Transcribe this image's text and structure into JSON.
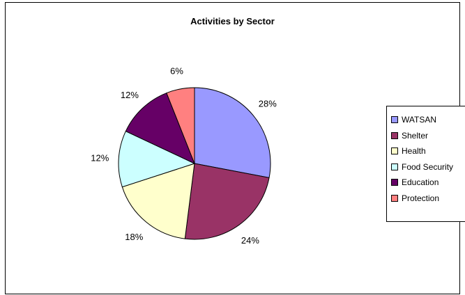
{
  "chart_data": {
    "type": "pie",
    "title": "Activities by Sector",
    "categories": [
      "WATSAN",
      "Shelter",
      "Health",
      "Food Security",
      "Education",
      "Protection"
    ],
    "values": [
      28,
      24,
      18,
      12,
      12,
      6
    ],
    "labels": [
      "28%",
      "24%",
      "18%",
      "12%",
      "12%",
      "6%"
    ],
    "colors": [
      "#9999FF",
      "#993366",
      "#FFFFCC",
      "#CCFFFF",
      "#660066",
      "#FF8080"
    ],
    "legend_position": "right"
  }
}
